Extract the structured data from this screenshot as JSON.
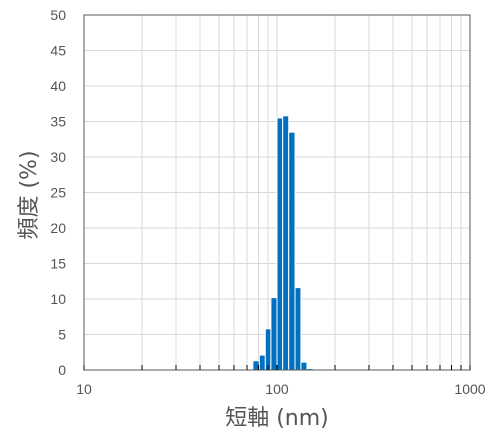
{
  "chart_data": {
    "type": "bar",
    "xlabel": "短軸 (nm)",
    "ylabel": "頻度 (%)",
    "xscale": "log",
    "xlim": [
      10,
      1000
    ],
    "ylim": [
      0,
      50
    ],
    "grid": true,
    "legend": "none",
    "bar_color": "#0070c0",
    "axis_color": "#595959",
    "grid_color": "#d9d9d9",
    "x_tick_values": [
      10,
      100,
      1000
    ],
    "x_tick_labels": [
      "10",
      "100",
      "1000"
    ],
    "y_tick_values": [
      0,
      5,
      10,
      15,
      20,
      25,
      30,
      35,
      40,
      45,
      50
    ],
    "y_tick_labels": [
      "0",
      "5",
      "10",
      "15",
      "20",
      "25",
      "30",
      "35",
      "40",
      "45",
      "50"
    ],
    "bins": [
      {
        "x0": 70,
        "x1": 75,
        "value": 0.1
      },
      {
        "x0": 75,
        "x1": 81,
        "value": 1.3
      },
      {
        "x0": 81,
        "x1": 87,
        "value": 2.1
      },
      {
        "x0": 87,
        "x1": 93,
        "value": 5.8
      },
      {
        "x0": 93,
        "x1": 100,
        "value": 10.2
      },
      {
        "x0": 100,
        "x1": 107,
        "value": 35.5
      },
      {
        "x0": 107,
        "x1": 115,
        "value": 35.8
      },
      {
        "x0": 115,
        "x1": 124,
        "value": 33.5
      },
      {
        "x0": 124,
        "x1": 133,
        "value": 11.6
      },
      {
        "x0": 133,
        "x1": 143,
        "value": 1.1
      },
      {
        "x0": 143,
        "x1": 154,
        "value": 0.2
      }
    ]
  }
}
